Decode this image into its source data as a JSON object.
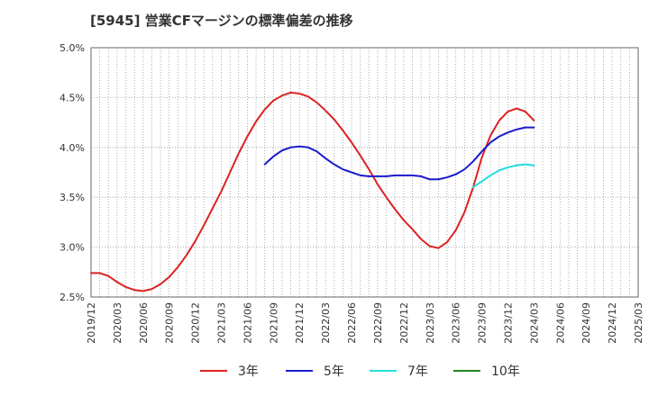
{
  "chart_data": {
    "type": "line",
    "title": "[5945]  営業CFマージンの標準偏差の推移",
    "xlabel": "",
    "ylabel": "",
    "ylim": [
      2.5,
      5.0
    ],
    "y_ticks": [
      "2.5%",
      "3.0%",
      "3.5%",
      "4.0%",
      "4.5%",
      "5.0%"
    ],
    "x_tick_labels": [
      "2019/12",
      "2020/03",
      "2020/06",
      "2020/09",
      "2020/12",
      "2021/03",
      "2021/06",
      "2021/09",
      "2021/12",
      "2022/03",
      "2022/06",
      "2022/09",
      "2022/12",
      "2023/03",
      "2023/06",
      "2023/09",
      "2023/12",
      "2024/03",
      "2024/06",
      "2024/09",
      "2024/12",
      "2025/03"
    ],
    "grid": true,
    "legend_position": "bottom",
    "series": [
      {
        "name": "3年",
        "color": "#dd2222",
        "points": [
          [
            "2019/12",
            2.74
          ],
          [
            "2020/01",
            2.74
          ],
          [
            "2020/02",
            2.71
          ],
          [
            "2020/03",
            2.65
          ],
          [
            "2020/04",
            2.6
          ],
          [
            "2020/05",
            2.57
          ],
          [
            "2020/06",
            2.56
          ],
          [
            "2020/07",
            2.58
          ],
          [
            "2020/08",
            2.63
          ],
          [
            "2020/09",
            2.7
          ],
          [
            "2020/10",
            2.8
          ],
          [
            "2020/11",
            2.92
          ],
          [
            "2020/12",
            3.06
          ],
          [
            "2021/01",
            3.22
          ],
          [
            "2021/02",
            3.39
          ],
          [
            "2021/03",
            3.56
          ],
          [
            "2021/04",
            3.75
          ],
          [
            "2021/05",
            3.94
          ],
          [
            "2021/06",
            4.11
          ],
          [
            "2021/07",
            4.26
          ],
          [
            "2021/08",
            4.38
          ],
          [
            "2021/09",
            4.47
          ],
          [
            "2021/10",
            4.52
          ],
          [
            "2021/11",
            4.55
          ],
          [
            "2021/12",
            4.54
          ],
          [
            "2022/01",
            4.51
          ],
          [
            "2022/02",
            4.45
          ],
          [
            "2022/03",
            4.37
          ],
          [
            "2022/04",
            4.28
          ],
          [
            "2022/05",
            4.17
          ],
          [
            "2022/06",
            4.05
          ],
          [
            "2022/07",
            3.92
          ],
          [
            "2022/08",
            3.78
          ],
          [
            "2022/09",
            3.63
          ],
          [
            "2022/10",
            3.5
          ],
          [
            "2022/11",
            3.38
          ],
          [
            "2022/12",
            3.27
          ],
          [
            "2023/01",
            3.18
          ],
          [
            "2023/02",
            3.08
          ],
          [
            "2023/03",
            3.01
          ],
          [
            "2023/04",
            2.99
          ],
          [
            "2023/05",
            3.05
          ],
          [
            "2023/06",
            3.17
          ],
          [
            "2023/07",
            3.35
          ],
          [
            "2023/08",
            3.6
          ],
          [
            "2023/09",
            3.9
          ],
          [
            "2023/10",
            4.12
          ],
          [
            "2023/11",
            4.27
          ],
          [
            "2023/12",
            4.36
          ],
          [
            "2024/01",
            4.39
          ],
          [
            "2024/02",
            4.36
          ],
          [
            "2024/03",
            4.27
          ]
        ]
      },
      {
        "name": "5年",
        "color": "#1a1acc",
        "points": [
          [
            "2021/08",
            3.83
          ],
          [
            "2021/09",
            3.91
          ],
          [
            "2021/10",
            3.97
          ],
          [
            "2021/11",
            4.0
          ],
          [
            "2021/12",
            4.01
          ],
          [
            "2022/01",
            4.0
          ],
          [
            "2022/02",
            3.96
          ],
          [
            "2022/03",
            3.89
          ],
          [
            "2022/04",
            3.83
          ],
          [
            "2022/05",
            3.78
          ],
          [
            "2022/06",
            3.75
          ],
          [
            "2022/07",
            3.72
          ],
          [
            "2022/08",
            3.71
          ],
          [
            "2022/09",
            3.71
          ],
          [
            "2022/10",
            3.71
          ],
          [
            "2022/11",
            3.72
          ],
          [
            "2022/12",
            3.72
          ],
          [
            "2023/01",
            3.72
          ],
          [
            "2023/02",
            3.71
          ],
          [
            "2023/03",
            3.68
          ],
          [
            "2023/04",
            3.68
          ],
          [
            "2023/05",
            3.7
          ],
          [
            "2023/06",
            3.73
          ],
          [
            "2023/07",
            3.78
          ],
          [
            "2023/08",
            3.86
          ],
          [
            "2023/09",
            3.96
          ],
          [
            "2023/10",
            4.05
          ],
          [
            "2023/11",
            4.11
          ],
          [
            "2023/12",
            4.15
          ],
          [
            "2024/01",
            4.18
          ],
          [
            "2024/02",
            4.2
          ],
          [
            "2024/03",
            4.2
          ]
        ]
      },
      {
        "name": "7年",
        "color": "#22dddd",
        "points": [
          [
            "2023/08",
            3.6
          ],
          [
            "2023/09",
            3.66
          ],
          [
            "2023/10",
            3.72
          ],
          [
            "2023/11",
            3.77
          ],
          [
            "2023/12",
            3.8
          ],
          [
            "2024/01",
            3.82
          ],
          [
            "2024/02",
            3.83
          ],
          [
            "2024/03",
            3.82
          ]
        ]
      },
      {
        "name": "10年",
        "color": "#228822",
        "points": []
      }
    ]
  }
}
